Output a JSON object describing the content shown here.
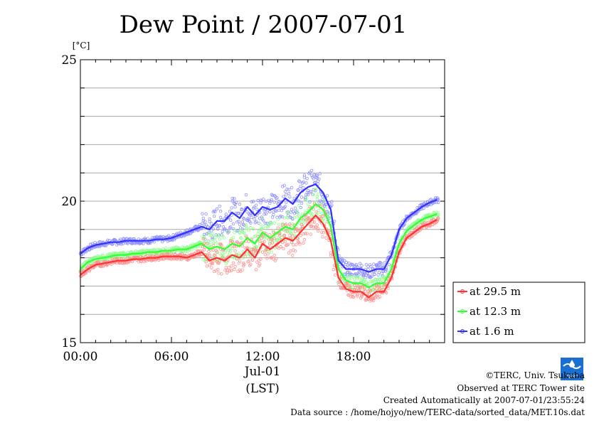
{
  "chart_data": {
    "type": "line",
    "title": "Dew Point / 2007-07-01",
    "ylabel": "[°C]",
    "ylim": [
      15,
      25
    ],
    "yticks": [
      15,
      20,
      25
    ],
    "xlim": [
      0,
      24
    ],
    "xticks": [
      {
        "x": 0,
        "label": "00:00"
      },
      {
        "x": 6,
        "label": "06:00"
      },
      {
        "x": 12,
        "label": "12:00"
      },
      {
        "x": 18,
        "label": "18:00"
      }
    ],
    "xdate": "Jul-01",
    "xlabel": "(LST)",
    "grid": true,
    "legend_position": "right",
    "series": [
      {
        "name": "at 29.5 m",
        "color": "#ff3030",
        "x": [
          0,
          0.5,
          1,
          1.5,
          2,
          2.5,
          3,
          3.5,
          4,
          4.5,
          5,
          5.5,
          6,
          6.5,
          7,
          7.5,
          8,
          8.5,
          9,
          9.5,
          10,
          10.5,
          11,
          11.5,
          12,
          12.5,
          13,
          13.5,
          14,
          14.5,
          15,
          15.5,
          16,
          16.5,
          17,
          17.5,
          18,
          18.5,
          19,
          19.5,
          20,
          20.5,
          21,
          21.5,
          22,
          22.5,
          23,
          23.5
        ],
        "values": [
          17.4,
          17.6,
          17.75,
          17.8,
          17.85,
          17.9,
          17.9,
          17.95,
          17.95,
          18.0,
          18.0,
          18.05,
          18.05,
          18.05,
          18.0,
          18.1,
          18.2,
          17.9,
          18.0,
          17.9,
          18.1,
          18.0,
          18.3,
          18.0,
          18.5,
          18.3,
          18.5,
          18.7,
          18.6,
          18.9,
          19.2,
          19.5,
          19.2,
          18.6,
          17.3,
          16.9,
          16.8,
          16.8,
          16.6,
          16.8,
          16.8,
          17.3,
          18.2,
          18.7,
          18.9,
          19.1,
          19.2,
          19.35
        ]
      },
      {
        "name": "at 12.3 m",
        "color": "#30ff30",
        "x": [
          0,
          0.5,
          1,
          1.5,
          2,
          2.5,
          3,
          3.5,
          4,
          4.5,
          5,
          5.5,
          6,
          6.5,
          7,
          7.5,
          8,
          8.5,
          9,
          9.5,
          10,
          10.5,
          11,
          11.5,
          12,
          12.5,
          13,
          13.5,
          14,
          14.5,
          15,
          15.5,
          16,
          16.5,
          17,
          17.5,
          18,
          18.5,
          19,
          19.5,
          20,
          20.5,
          21,
          21.5,
          22,
          22.5,
          23,
          23.5
        ],
        "values": [
          17.6,
          17.85,
          17.95,
          18.0,
          18.05,
          18.1,
          18.1,
          18.15,
          18.15,
          18.2,
          18.2,
          18.25,
          18.25,
          18.3,
          18.3,
          18.4,
          18.5,
          18.3,
          18.4,
          18.3,
          18.5,
          18.4,
          18.7,
          18.5,
          18.9,
          18.7,
          18.9,
          19.1,
          19.0,
          19.4,
          19.6,
          19.9,
          19.7,
          19.1,
          17.6,
          17.2,
          17.1,
          17.1,
          16.95,
          17.1,
          17.1,
          17.6,
          18.5,
          18.95,
          19.15,
          19.35,
          19.45,
          19.55
        ]
      },
      {
        "name": "at 1.6 m",
        "color": "#3030ff",
        "x": [
          0,
          0.5,
          1,
          1.5,
          2,
          2.5,
          3,
          3.5,
          4,
          4.5,
          5,
          5.5,
          6,
          6.5,
          7,
          7.5,
          8,
          8.5,
          9,
          9.5,
          10,
          10.5,
          11,
          11.5,
          12,
          12.5,
          13,
          13.5,
          14,
          14.5,
          15,
          15.5,
          16,
          16.5,
          17,
          17.5,
          18,
          18.5,
          19,
          19.5,
          20,
          20.5,
          21,
          21.5,
          22,
          22.5,
          23,
          23.5
        ],
        "values": [
          18.15,
          18.35,
          18.45,
          18.5,
          18.55,
          18.55,
          18.6,
          18.6,
          18.6,
          18.6,
          18.65,
          18.65,
          18.7,
          18.8,
          18.9,
          19.0,
          19.1,
          19.0,
          19.3,
          19.3,
          19.6,
          19.4,
          19.8,
          19.5,
          19.8,
          19.7,
          19.8,
          20.1,
          19.9,
          20.3,
          20.5,
          20.6,
          20.3,
          19.7,
          17.9,
          17.6,
          17.6,
          17.6,
          17.5,
          17.6,
          17.6,
          18.1,
          19.0,
          19.4,
          19.6,
          19.8,
          19.95,
          20.05
        ]
      }
    ]
  },
  "credits": {
    "copyright": "©TERC, Univ. Tsukuba",
    "observed": "Observed at TERC Tower site",
    "created": "Created Automatically at 2007-07-01/23:55:24",
    "source": "Data source : /home/hojyo/new/TERC-data/sorted_data/MET.10s.dat",
    "logo_text": "TERC"
  }
}
